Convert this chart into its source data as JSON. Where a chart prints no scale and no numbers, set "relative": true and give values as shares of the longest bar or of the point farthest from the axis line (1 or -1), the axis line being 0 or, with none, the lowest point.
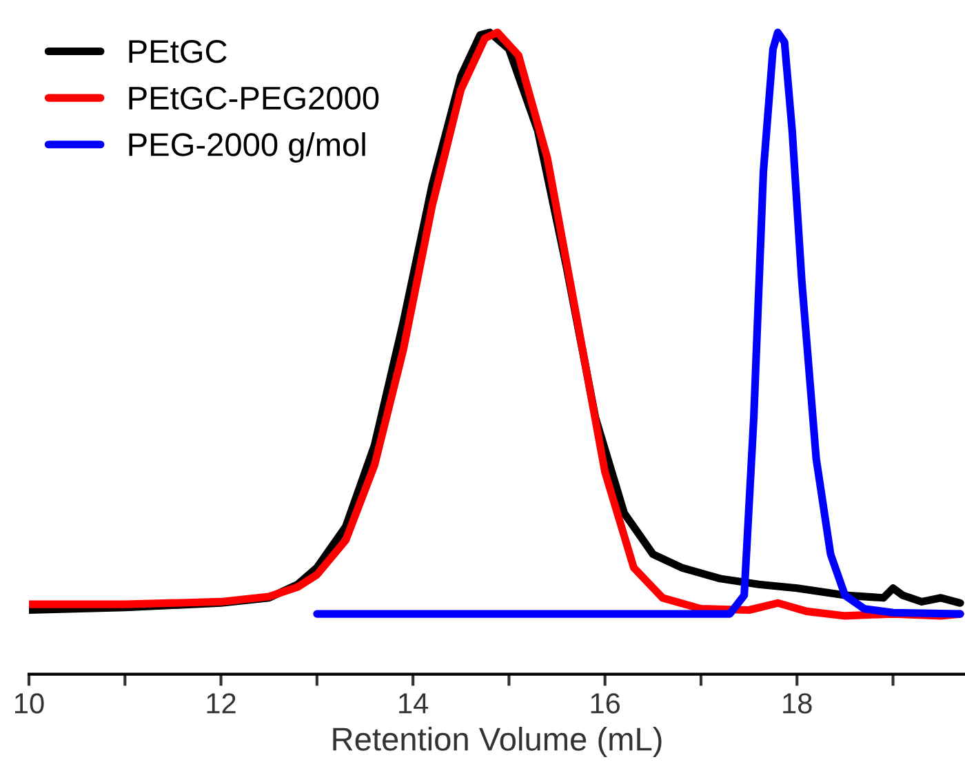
{
  "chart_data": {
    "type": "line",
    "xlabel": "Retention Volume (mL)",
    "relative": true,
    "legend": "top left",
    "tick_labels": "x",
    "line_style": "solid",
    "xlim": [
      10,
      19.75
    ],
    "xticks": [
      10,
      {
        "value": 11,
        "label": null
      },
      12,
      {
        "value": 13,
        "label": null
      },
      14,
      {
        "value": 15,
        "label": null
      },
      16,
      {
        "value": 17,
        "label": null
      },
      18,
      {
        "value": 19,
        "label": null
      }
    ],
    "series": [
      {
        "name": "PEtGC",
        "color": "#000000",
        "x": [
          10,
          11,
          12,
          12.5,
          12.8,
          13,
          13.3,
          13.6,
          13.9,
          14.2,
          14.5,
          14.7,
          14.8,
          15.0,
          15.3,
          15.6,
          15.9,
          16.2,
          16.5,
          16.8,
          17.2,
          17.6,
          18.0,
          18.5,
          18.9,
          19.0,
          19.1,
          19.3,
          19.5,
          19.7
        ],
        "values": [
          0.1,
          0.104,
          0.111,
          0.119,
          0.14,
          0.166,
          0.23,
          0.357,
          0.549,
          0.762,
          0.932,
          0.996,
          1.0,
          0.974,
          0.847,
          0.634,
          0.4,
          0.251,
          0.187,
          0.166,
          0.149,
          0.14,
          0.134,
          0.123,
          0.119,
          0.134,
          0.123,
          0.113,
          0.119,
          0.111
        ]
      },
      {
        "name": "PEtGC-PEG2000",
        "color": "#ff0000",
        "x": [
          10,
          11,
          12,
          12.5,
          12.8,
          13,
          13.3,
          13.6,
          13.9,
          14.2,
          14.5,
          14.75,
          14.88,
          15.1,
          15.4,
          15.7,
          16.0,
          16.3,
          16.6,
          17.0,
          17.5,
          17.8,
          18.1,
          18.5,
          19.0,
          19.5,
          19.7
        ],
        "values": [
          0.109,
          0.109,
          0.113,
          0.121,
          0.136,
          0.155,
          0.209,
          0.326,
          0.506,
          0.73,
          0.911,
          0.991,
          1.0,
          0.964,
          0.804,
          0.56,
          0.315,
          0.166,
          0.119,
          0.102,
          0.1,
          0.111,
          0.098,
          0.091,
          0.094,
          0.091,
          0.094
        ]
      },
      {
        "name": "PEG-2000 g/mol",
        "color": "#0000ff",
        "x": [
          13,
          17.3,
          17.45,
          17.55,
          17.65,
          17.75,
          17.8,
          17.87,
          17.95,
          18.05,
          18.2,
          18.35,
          18.5,
          18.7,
          19.0,
          19.7
        ],
        "values": [
          0.094,
          0.094,
          0.123,
          0.4,
          0.783,
          0.974,
          1.0,
          0.985,
          0.847,
          0.613,
          0.336,
          0.187,
          0.123,
          0.102,
          0.096,
          0.094
        ]
      }
    ]
  }
}
